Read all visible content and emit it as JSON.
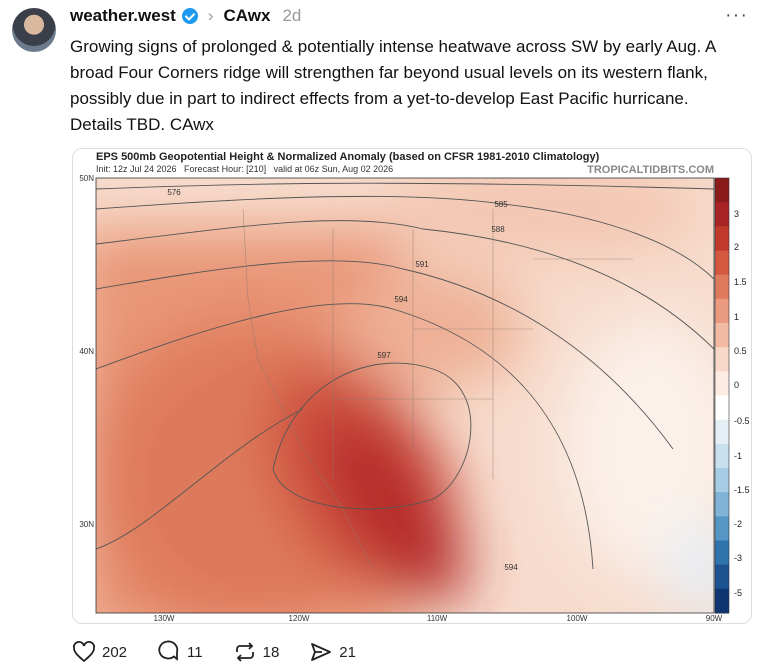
{
  "post": {
    "author": "weather.west",
    "community": "CAwx",
    "time": "2d",
    "text": "Growing signs of prolonged & potentially intense heatwave across SW by early Aug. A broad Four Corners ridge will strengthen far beyond usual levels on its western flank, possibly due in part to indirect effects from a yet-to-develop East Pacific hurricane. Details TBD. CAwx",
    "likes": 202,
    "replies": 11,
    "reposts": 18,
    "shares": 21
  },
  "image": {
    "title": "EPS 500mb Geopotential Height & Normalized Anomaly (based on CFSR 1981-2010 Climatology)",
    "subtitle": "Init: 12z Jul 24 2026   Forecast Hour: [210]   valid at 06z Sun, Aug 02 2026",
    "source": "TROPICALTIDBITS.COM",
    "lat_labels": [
      "50N",
      "40N",
      "30N"
    ],
    "lon_labels": [
      "130W",
      "120W",
      "110W",
      "100W",
      "90W"
    ],
    "colorbar_labels": [
      "3",
      "2",
      "1.5",
      "1",
      "0.5",
      "0",
      "-0.5",
      "-1",
      "-1.5",
      "-2",
      "-3",
      "-5"
    ],
    "contour_labels": [
      "576",
      "585",
      "588",
      "591",
      "594",
      "597",
      "594"
    ]
  }
}
